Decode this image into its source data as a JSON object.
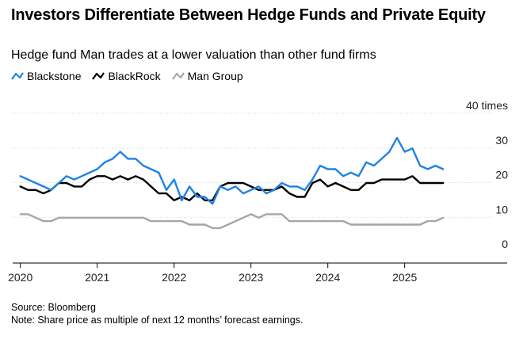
{
  "header": {
    "title": "Investors Differentiate Between Hedge Funds and Private Equity",
    "subtitle": "Hedge fund Man trades at a lower valuation than other fund firms"
  },
  "footer": {
    "source": "Source: Bloomberg",
    "note": "Note: Share price as multiple of next 12 months’ forecast earnings."
  },
  "chart_data": {
    "type": "line",
    "title": "Investors Differentiate Between Hedge Funds and Private Equity",
    "subtitle": "Hedge fund Man trades at a lower valuation than other fund firms",
    "ylabel": "times",
    "y_unit_label": "40 times",
    "ylim": [
      0,
      40
    ],
    "yticks": [
      0,
      10,
      20,
      30,
      40
    ],
    "xlim": [
      2019.9,
      2025.9
    ],
    "xticks": [
      2020,
      2021,
      2022,
      2023,
      2024,
      2025
    ],
    "xtick_labels": [
      "2020",
      "2021",
      "2022",
      "2023",
      "2024",
      "2025"
    ],
    "grid": "horizontal",
    "legend_position": "top-left",
    "x": [
      2020.0,
      2020.1,
      2020.2,
      2020.3,
      2020.4,
      2020.5,
      2020.6,
      2020.7,
      2020.8,
      2020.9,
      2021.0,
      2021.1,
      2021.2,
      2021.3,
      2021.4,
      2021.5,
      2021.6,
      2021.7,
      2021.8,
      2021.9,
      2022.0,
      2022.1,
      2022.2,
      2022.3,
      2022.4,
      2022.5,
      2022.6,
      2022.7,
      2022.8,
      2022.9,
      2023.0,
      2023.1,
      2023.2,
      2023.3,
      2023.4,
      2023.5,
      2023.6,
      2023.7,
      2023.8,
      2023.9,
      2024.0,
      2024.1,
      2024.2,
      2024.3,
      2024.4,
      2024.5,
      2024.6,
      2024.7,
      2024.8,
      2024.9,
      2025.0,
      2025.1,
      2025.2,
      2025.3,
      2025.4,
      2025.5
    ],
    "series": [
      {
        "name": "Blackstone",
        "color": "#1f82e6",
        "values": [
          22,
          21,
          20,
          19,
          18,
          20,
          22,
          21,
          22,
          23,
          24,
          26,
          27,
          29,
          27,
          27,
          25,
          24,
          23,
          18,
          21,
          15,
          19,
          16,
          16,
          14,
          19,
          18,
          19,
          17,
          18,
          19,
          17,
          18,
          20,
          19,
          19,
          18,
          21,
          25,
          24,
          24,
          22,
          23,
          22,
          26,
          25,
          27,
          29,
          33,
          29,
          30,
          25,
          24,
          25,
          24
        ]
      },
      {
        "name": "BlackRock",
        "color": "#000000",
        "values": [
          19,
          18,
          18,
          17,
          18,
          20,
          20,
          19,
          19,
          21,
          22,
          22,
          21,
          22,
          21,
          22,
          21,
          19,
          17,
          17,
          15,
          16,
          15,
          17,
          15,
          15,
          19,
          20,
          20,
          20,
          19,
          18,
          18,
          18,
          19,
          17,
          16,
          16,
          20,
          21,
          19,
          20,
          19,
          18,
          18,
          20,
          20,
          21,
          21,
          21,
          21,
          22,
          20,
          20,
          20,
          20
        ]
      },
      {
        "name": "Man Group",
        "color": "#a6a6a6",
        "values": [
          11,
          11,
          10,
          9,
          9,
          10,
          10,
          10,
          10,
          10,
          10,
          10,
          10,
          10,
          10,
          10,
          10,
          9,
          9,
          9,
          9,
          9,
          8,
          8,
          8,
          7,
          7,
          8,
          9,
          10,
          11,
          10,
          11,
          11,
          11,
          9,
          9,
          9,
          9,
          9,
          9,
          9,
          9,
          8,
          8,
          8,
          8,
          8,
          8,
          8,
          8,
          8,
          8,
          9,
          9,
          10
        ]
      }
    ]
  }
}
